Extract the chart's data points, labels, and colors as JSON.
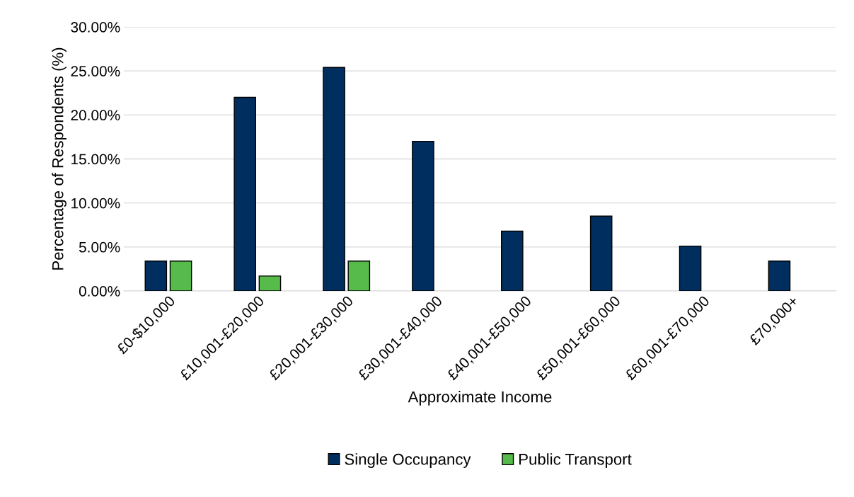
{
  "chart_data": {
    "type": "bar",
    "xlabel": "Approximate Income",
    "ylabel": "Percentage of Respondents (%)",
    "categories": [
      "£0-$10,000",
      "£10,001-£20,000",
      "£20,001-£30,000",
      "£30,001-£40,000",
      "£40,001-£50,000",
      "£50,001-£60,000",
      "£60,001-£70,000",
      "£70,000+"
    ],
    "series": [
      {
        "name": "Single Occupancy",
        "color": "#002e5f",
        "values": [
          3.4,
          22.0,
          25.4,
          17.0,
          6.8,
          8.5,
          5.1,
          3.4
        ]
      },
      {
        "name": "Public Transport",
        "color": "#57bb4b",
        "values": [
          3.4,
          1.7,
          3.4,
          null,
          null,
          null,
          null,
          null
        ]
      }
    ],
    "ylim": [
      0,
      30
    ],
    "yticks": [
      {
        "value": 0,
        "label": "0.00%"
      },
      {
        "value": 5,
        "label": "5.00%"
      },
      {
        "value": 10,
        "label": "10.00%"
      },
      {
        "value": 15,
        "label": "15.00%"
      },
      {
        "value": 20,
        "label": "20.00%"
      },
      {
        "value": 25,
        "label": "25.00%"
      },
      {
        "value": 30,
        "label": "30.00%"
      }
    ],
    "grid": "y",
    "legend": "bottom"
  }
}
